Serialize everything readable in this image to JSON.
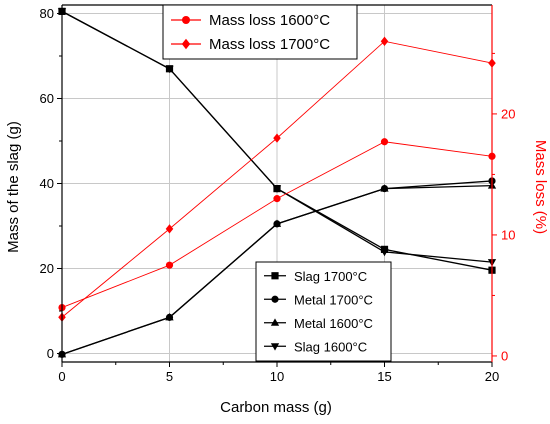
{
  "chart_data": {
    "type": "line",
    "title": "",
    "xlabel": "Carbon mass (g)",
    "ylabel": "Mass of the slag (g)",
    "y2label": "Mass loss (%)",
    "x": [
      0,
      5,
      10,
      15,
      20
    ],
    "xlim": [
      0,
      20
    ],
    "ylim": [
      -2,
      82
    ],
    "y2lim": [
      -0.5,
      29
    ],
    "xticks": [
      "0",
      "5",
      "10",
      "15",
      "20"
    ],
    "yticks": [
      "0",
      "20",
      "40",
      "60",
      "80"
    ],
    "y2ticks": [
      "0",
      "10",
      "20"
    ],
    "grid": true,
    "series": [
      {
        "name": "Slag 1700°C",
        "axis": "left",
        "marker": "square",
        "color": "#000000",
        "values": [
          80.5,
          67.0,
          38.8,
          24.5,
          19.6
        ]
      },
      {
        "name": "Metal 1700°C",
        "axis": "left",
        "marker": "circle",
        "color": "#000000",
        "values": [
          -0.2,
          8.5,
          30.5,
          38.8,
          40.6
        ]
      },
      {
        "name": "Metal 1600°C",
        "axis": "left",
        "marker": "triangle-up",
        "color": "#000000",
        "values": [
          -0.2,
          8.5,
          30.5,
          38.8,
          39.5
        ]
      },
      {
        "name": "Slag 1600°C",
        "axis": "left",
        "marker": "triangle-down",
        "color": "#000000",
        "values": [
          80.5,
          67.0,
          38.8,
          23.9,
          21.5
        ]
      },
      {
        "name": "Mass loss 1600°C",
        "axis": "right",
        "marker": "circle",
        "color": "#ff0000",
        "values": [
          4.0,
          7.5,
          13.0,
          17.7,
          16.5
        ]
      },
      {
        "name": "Mass loss 1700°C",
        "axis": "right",
        "marker": "diamond",
        "color": "#ff0000",
        "values": [
          3.2,
          10.5,
          18.0,
          26.0,
          24.2
        ]
      }
    ],
    "legends": [
      {
        "placement": "top-center",
        "series": [
          4,
          5
        ]
      },
      {
        "placement": "bottom-center",
        "series": [
          0,
          1,
          2,
          3
        ]
      }
    ]
  }
}
